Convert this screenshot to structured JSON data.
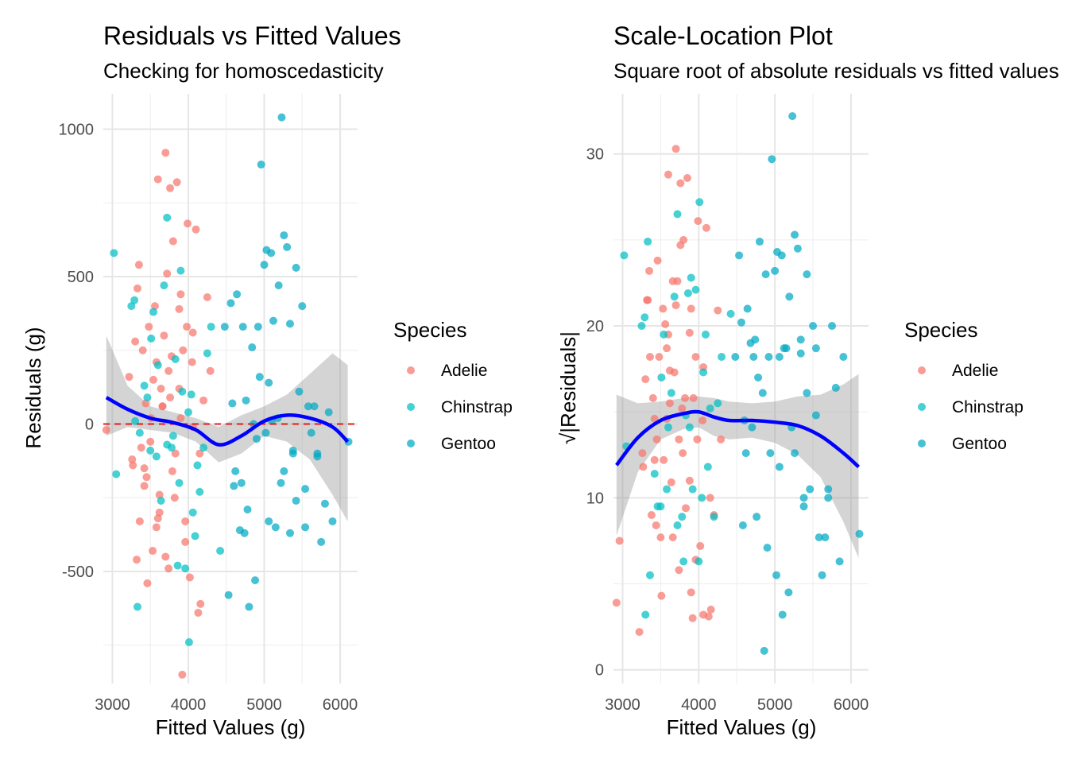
{
  "chart_data": [
    {
      "type": "scatter",
      "title": "Residuals vs Fitted Values",
      "subtitle": "Checking for homoscedasticity",
      "xlabel": "Fitted Values (g)",
      "ylabel": "Residuals (g)",
      "xlim": [
        2880,
        6230
      ],
      "ylim": [
        -880,
        1120
      ],
      "xticks": [
        3000,
        4000,
        5000,
        6000
      ],
      "yticks": [
        -500,
        0,
        500,
        1000
      ],
      "grid": true,
      "legend": {
        "title": "Species",
        "position": "right",
        "entries": [
          "Adelie",
          "Chinstrap",
          "Gentoo"
        ]
      },
      "reference_line": {
        "y": 0,
        "color": "#e31a1c",
        "style": "dashed"
      },
      "smooth": {
        "color": "#0000ff",
        "x": [
          2920,
          3200,
          3500,
          3800,
          4100,
          4400,
          4700,
          5000,
          5300,
          5600,
          5900,
          6100
        ],
        "y": [
          90,
          50,
          20,
          5,
          -20,
          -70,
          -40,
          10,
          30,
          20,
          -10,
          -60
        ],
        "band_low": [
          -40,
          -10,
          -20,
          -30,
          -60,
          -130,
          -100,
          -40,
          -60,
          -120,
          -240,
          -330
        ],
        "band_high": [
          300,
          130,
          60,
          40,
          20,
          -10,
          30,
          60,
          100,
          170,
          240,
          200
        ]
      },
      "series": [
        {
          "name": "Adelie",
          "color": "#f8766d",
          "x": [
            2920,
            3220,
            3260,
            3300,
            3330,
            3350,
            3380,
            3400,
            3420,
            3460,
            3480,
            3510,
            3530,
            3560,
            3580,
            3600,
            3620,
            3640,
            3660,
            3680,
            3700,
            3720,
            3740,
            3760,
            3780,
            3800,
            3830,
            3850,
            3880,
            3900,
            3930,
            3960,
            3990,
            4020,
            4060,
            4100,
            4130,
            4160,
            4200,
            4250,
            4290,
            3320,
            3450,
            3540,
            3620,
            3700,
            3790,
            3880,
            3960,
            4050,
            4150,
            3270,
            3420,
            3580,
            3740,
            3900,
            4060,
            3360,
            3500,
            3660,
            3820,
            3980,
            3440,
            3600,
            3760,
            3920
          ],
          "y": [
            -20,
            160,
            -120,
            280,
            460,
            540,
            -80,
            250,
            -210,
            -540,
            330,
            20,
            -430,
            400,
            210,
            830,
            -300,
            120,
            60,
            300,
            920,
            510,
            -490,
            800,
            230,
            620,
            -100,
            820,
            390,
            440,
            250,
            -400,
            680,
            -520,
            310,
            660,
            -640,
            -610,
            80,
            430,
            180,
            -460,
            -180,
            150,
            -240,
            -450,
            -160,
            120,
            -330,
            210,
            -100,
            -140,
            -150,
            -350,
            180,
            20,
            -10,
            -330,
            -60,
            60,
            -250,
            330,
            70,
            -320,
            90,
            -850
          ]
        },
        {
          "name": "Chinstrap",
          "color": "#00bfc4",
          "x": [
            3020,
            3050,
            3250,
            3290,
            3330,
            3420,
            3510,
            3540,
            3600,
            3680,
            3720,
            3780,
            3830,
            3860,
            3900,
            3920,
            3960,
            4010,
            4060,
            4090,
            4150,
            4200,
            4250,
            3500,
            3640,
            3800,
            4000,
            4120,
            3360,
            3580,
            3720,
            3880,
            4040,
            4300,
            4420,
            3300,
            3460
          ],
          "y": [
            580,
            -170,
            400,
            420,
            -620,
            130,
            290,
            380,
            200,
            470,
            700,
            -80,
            220,
            -480,
            520,
            110,
            -490,
            -740,
            -300,
            -380,
            -230,
            -80,
            240,
            -90,
            -260,
            -40,
            40,
            -140,
            -30,
            -110,
            -70,
            -200,
            100,
            330,
            -430,
            10,
            90
          ]
        },
        {
          "name": "Gentoo",
          "color": "#00a9c4",
          "x": [
            4480,
            4530,
            4560,
            4600,
            4640,
            4680,
            4720,
            4760,
            4800,
            4840,
            4880,
            4920,
            4960,
            5000,
            5030,
            5060,
            5090,
            5120,
            5150,
            5190,
            5230,
            5260,
            5300,
            5340,
            5380,
            5420,
            5460,
            5500,
            5540,
            5580,
            5620,
            5660,
            5700,
            5750,
            5800,
            5850,
            5900,
            6110,
            4620,
            4700,
            4780,
            4860,
            4940,
            5020,
            5100,
            5180,
            5260,
            5340,
            5420,
            4580,
            4740,
            4900,
            5060,
            5220,
            5380,
            5540,
            5700
          ],
          "y": [
            330,
            -580,
            410,
            -210,
            440,
            -360,
            330,
            80,
            -620,
            260,
            -530,
            330,
            880,
            540,
            590,
            -330,
            580,
            350,
            -350,
            470,
            1040,
            640,
            600,
            340,
            -100,
            530,
            110,
            400,
            -220,
            60,
            -30,
            60,
            -100,
            -400,
            -270,
            40,
            -330,
            -60,
            -160,
            -200,
            -290,
            0,
            160,
            -30,
            10,
            20,
            -160,
            -370,
            -260,
            70,
            -370,
            -50,
            140,
            -200,
            -90,
            -350,
            -110
          ]
        }
      ]
    },
    {
      "type": "scatter",
      "title": "Scale-Location Plot",
      "subtitle": "Square root of absolute residuals vs fitted values",
      "xlabel": "Fitted Values (g)",
      "ylabel": "√|Residuals|",
      "xlim": [
        2880,
        6230
      ],
      "ylim": [
        -0.8,
        33.5
      ],
      "xticks": [
        3000,
        4000,
        5000,
        6000
      ],
      "yticks": [
        0,
        10,
        20,
        30
      ],
      "grid": true,
      "legend": {
        "title": "Species",
        "position": "right",
        "entries": [
          "Adelie",
          "Chinstrap",
          "Gentoo"
        ]
      },
      "smooth": {
        "color": "#0000ff",
        "x": [
          2920,
          3200,
          3500,
          3800,
          4000,
          4200,
          4400,
          4700,
          5000,
          5300,
          5600,
          5900,
          6100
        ],
        "y": [
          11.9,
          13.5,
          14.5,
          14.9,
          15.0,
          14.7,
          14.5,
          14.5,
          14.4,
          14.2,
          13.6,
          12.6,
          11.8
        ],
        "band_low": [
          7.8,
          11.5,
          13.4,
          14.0,
          14.1,
          13.6,
          13.4,
          13.5,
          13.2,
          12.5,
          11.2,
          8.6,
          6.5
        ],
        "band_high": [
          16.0,
          15.5,
          15.6,
          15.8,
          15.9,
          15.8,
          15.6,
          15.5,
          15.6,
          15.9,
          16.0,
          16.6,
          17.2
        ]
      },
      "series": [
        {
          "name": "Adelie",
          "color": "#f8766d",
          "x": [
            2920,
            2960,
            3220,
            3260,
            3300,
            3330,
            3350,
            3380,
            3400,
            3420,
            3460,
            3480,
            3510,
            3530,
            3560,
            3580,
            3600,
            3620,
            3640,
            3660,
            3680,
            3700,
            3720,
            3740,
            3760,
            3780,
            3800,
            3830,
            3850,
            3880,
            3900,
            3930,
            3960,
            3990,
            4020,
            4060,
            4100,
            4130,
            4160,
            4200,
            4250,
            4290,
            3320,
            3450,
            3540,
            3620,
            3700,
            3790,
            3880,
            3960,
            4050,
            4150,
            3270,
            3420,
            3580,
            3740,
            3900,
            4060,
            3360,
            3500,
            3660,
            3820,
            3980,
            3440,
            3600,
            3760,
            3920
          ],
          "y": [
            3.9,
            7.5,
            2.2,
            12.6,
            16.9,
            21.5,
            23.2,
            9.0,
            15.8,
            14.6,
            23.8,
            18.2,
            4.3,
            21.0,
            20.1,
            14.6,
            28.8,
            17.4,
            10.9,
            22.6,
            17.3,
            30.3,
            22.6,
            5.8,
            28.3,
            15.2,
            25.0,
            9.4,
            28.6,
            19.6,
            21.0,
            15.8,
            6.4,
            26.1,
            7.2,
            17.6,
            25.7,
            3.1,
            3.5,
            9.0,
            20.9,
            13.4,
            21.5,
            13.4,
            12.2,
            15.5,
            21.2,
            12.6,
            11.0,
            18.2,
            14.5,
            10.0,
            11.8,
            12.2,
            18.7,
            13.4,
            4.5,
            3.2,
            18.2,
            7.7,
            7.7,
            15.8,
            13.4,
            8.4,
            19.5,
            24.7,
            3.0
          ]
        },
        {
          "name": "Chinstrap",
          "color": "#00bfc4",
          "x": [
            3020,
            3050,
            3250,
            3290,
            3330,
            3420,
            3510,
            3540,
            3600,
            3680,
            3720,
            3780,
            3830,
            3860,
            3900,
            3920,
            3960,
            4010,
            4060,
            4090,
            4150,
            4200,
            4250,
            3500,
            3640,
            3800,
            4000,
            4120,
            3360,
            3580,
            3720,
            3880,
            4040,
            4300,
            4420,
            3300,
            3460
          ],
          "y": [
            24.1,
            13.0,
            20.0,
            20.5,
            24.9,
            11.4,
            17.0,
            19.5,
            14.1,
            21.7,
            26.5,
            8.9,
            14.8,
            21.9,
            22.8,
            10.5,
            22.1,
            27.2,
            17.3,
            19.5,
            15.2,
            8.9,
            15.5,
            9.5,
            16.1,
            6.3,
            6.3,
            11.8,
            5.5,
            10.5,
            8.4,
            14.1,
            10.0,
            18.2,
            20.7,
            3.2,
            9.5
          ]
        },
        {
          "name": "Gentoo",
          "color": "#00a9c4",
          "x": [
            4480,
            4530,
            4560,
            4600,
            4640,
            4680,
            4720,
            4760,
            4800,
            4840,
            4880,
            4920,
            4960,
            5000,
            5030,
            5060,
            5090,
            5120,
            5150,
            5190,
            5230,
            5260,
            5300,
            5340,
            5380,
            5420,
            5460,
            5500,
            5540,
            5580,
            5620,
            5660,
            5700,
            5750,
            5800,
            5850,
            5900,
            6110,
            4620,
            4700,
            4780,
            4860,
            4940,
            5020,
            5100,
            5180,
            5260,
            5340,
            5420,
            4580,
            4740,
            4900,
            5060,
            5220,
            5380,
            5540,
            5700
          ],
          "y": [
            18.2,
            24.1,
            20.2,
            14.5,
            21.0,
            19.0,
            18.2,
            8.9,
            24.9,
            16.1,
            23.0,
            18.2,
            29.7,
            23.2,
            24.3,
            18.2,
            24.1,
            18.7,
            18.7,
            21.7,
            32.2,
            25.3,
            24.5,
            18.4,
            10.0,
            23.0,
            10.5,
            20.0,
            14.8,
            7.7,
            5.5,
            7.7,
            10.0,
            20.0,
            16.4,
            6.3,
            18.2,
            7.9,
            12.6,
            14.1,
            17.0,
            1.1,
            12.6,
            5.5,
            3.2,
            4.5,
            12.6,
            19.2,
            16.1,
            8.4,
            19.2,
            7.1,
            11.8,
            14.1,
            9.5,
            18.7,
            10.5
          ]
        }
      ]
    }
  ]
}
